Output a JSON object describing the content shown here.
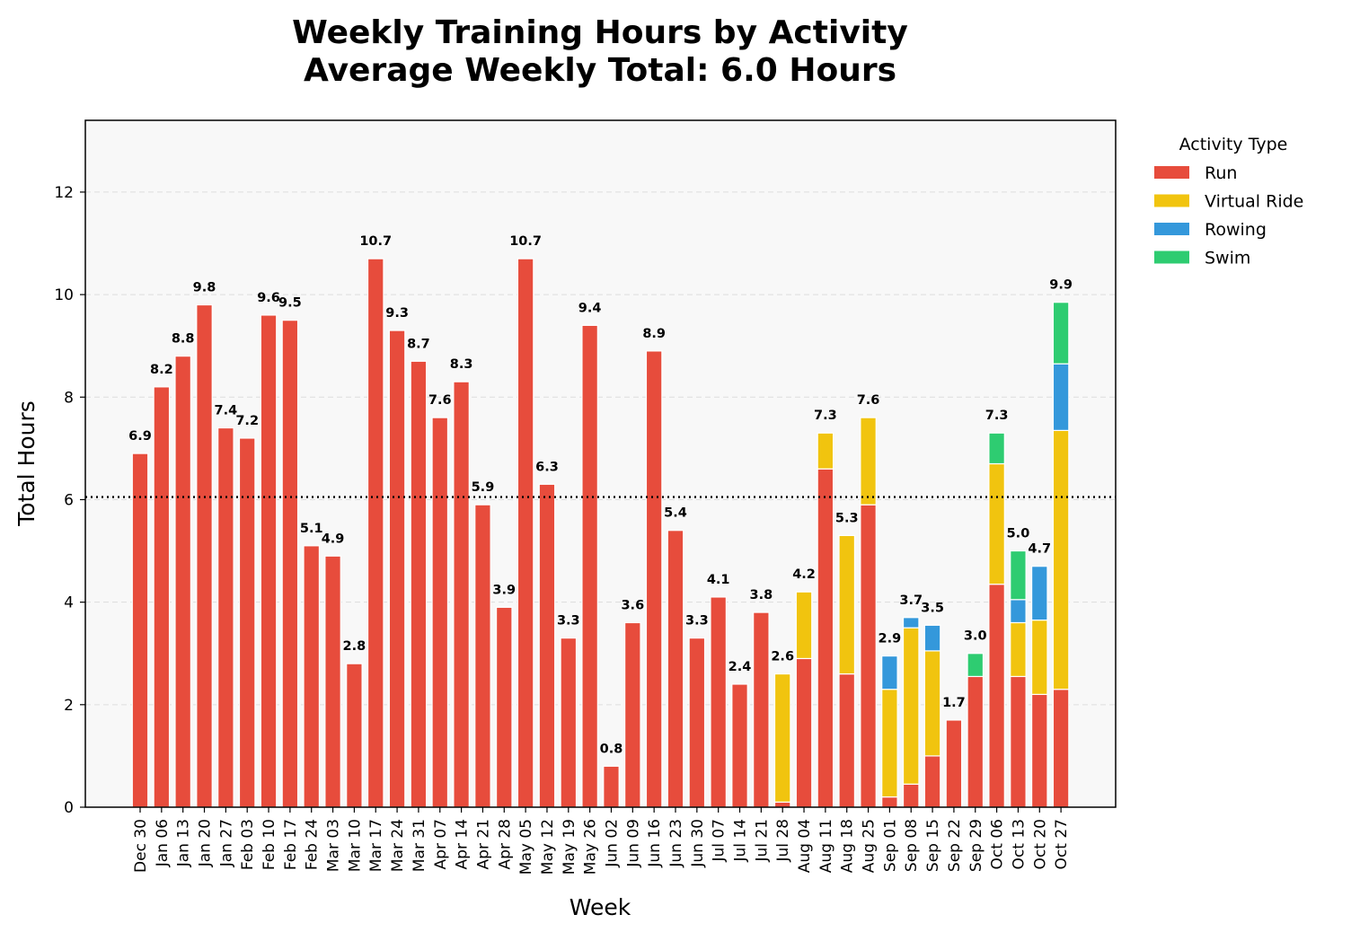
{
  "chart_data": {
    "type": "bar",
    "stacked": true,
    "title": "Weekly Training Hours by Activity",
    "subtitle": "Average Weekly Total: 6.0 Hours",
    "xlabel": "Week",
    "ylabel": "Total Hours",
    "ylim": [
      0,
      13.4
    ],
    "yticks": [
      0,
      2,
      4,
      6,
      8,
      10,
      12
    ],
    "grid": "horizontal dashed",
    "average_line": 6.05,
    "legend": {
      "title": "Activity Type",
      "placement": "outside-top-right"
    },
    "categories": [
      "Dec 30",
      "Jan 06",
      "Jan 13",
      "Jan 20",
      "Jan 27",
      "Feb 03",
      "Feb 10",
      "Feb 17",
      "Feb 24",
      "Mar 03",
      "Mar 10",
      "Mar 17",
      "Mar 24",
      "Mar 31",
      "Apr 07",
      "Apr 14",
      "Apr 21",
      "Apr 28",
      "May 05",
      "May 12",
      "May 19",
      "May 26",
      "Jun 02",
      "Jun 09",
      "Jun 16",
      "Jun 23",
      "Jun 30",
      "Jul 07",
      "Jul 14",
      "Jul 21",
      "Jul 28",
      "Aug 04",
      "Aug 11",
      "Aug 18",
      "Aug 25",
      "Sep 01",
      "Sep 08",
      "Sep 15",
      "Sep 22",
      "Sep 29",
      "Oct 06",
      "Oct 13",
      "Oct 20",
      "Oct 27"
    ],
    "series": [
      {
        "name": "Run",
        "color": "#e74c3c",
        "values": [
          6.9,
          8.2,
          8.8,
          9.8,
          7.4,
          7.2,
          9.6,
          9.5,
          5.1,
          4.9,
          2.8,
          10.7,
          9.3,
          8.7,
          7.6,
          8.3,
          5.9,
          3.9,
          10.7,
          6.3,
          3.3,
          9.4,
          0.8,
          3.6,
          8.9,
          5.4,
          3.3,
          4.1,
          2.4,
          3.8,
          0.1,
          2.9,
          6.6,
          2.6,
          5.9,
          0.2,
          0.45,
          1.0,
          1.7,
          2.55,
          4.35,
          2.55,
          2.2,
          2.3
        ]
      },
      {
        "name": "Virtual Ride",
        "color": "#f1c40f",
        "values": [
          0,
          0,
          0,
          0,
          0,
          0,
          0,
          0,
          0,
          0,
          0,
          0,
          0,
          0,
          0,
          0,
          0,
          0,
          0,
          0,
          0,
          0,
          0,
          0,
          0,
          0,
          0,
          0,
          0,
          0,
          2.5,
          1.3,
          0.7,
          2.7,
          1.7,
          2.1,
          3.05,
          2.05,
          0,
          0,
          2.35,
          1.05,
          1.45,
          5.05
        ]
      },
      {
        "name": "Rowing",
        "color": "#3498db",
        "values": [
          0,
          0,
          0,
          0,
          0,
          0,
          0,
          0,
          0,
          0,
          0,
          0,
          0,
          0,
          0,
          0,
          0,
          0,
          0,
          0,
          0,
          0,
          0,
          0,
          0,
          0,
          0,
          0,
          0,
          0,
          0,
          0,
          0,
          0,
          0,
          0.65,
          0.2,
          0.5,
          0,
          0,
          0,
          0.45,
          1.05,
          1.3
        ]
      },
      {
        "name": "Swim",
        "color": "#2ecc71",
        "values": [
          0,
          0,
          0,
          0,
          0,
          0,
          0,
          0,
          0,
          0,
          0,
          0,
          0,
          0,
          0,
          0,
          0,
          0,
          0,
          0,
          0,
          0,
          0,
          0,
          0,
          0,
          0,
          0,
          0,
          0,
          0,
          0,
          0,
          0,
          0,
          0,
          0,
          0,
          0,
          0.45,
          0.6,
          0.95,
          0,
          1.2
        ]
      }
    ],
    "totals": [
      "6.9",
      "8.2",
      "8.8",
      "9.8",
      "7.4",
      "7.2",
      "9.6",
      "9.5",
      "5.1",
      "4.9",
      "2.8",
      "10.7",
      "9.3",
      "8.7",
      "7.6",
      "8.3",
      "5.9",
      "3.9",
      "10.7",
      "6.3",
      "3.3",
      "9.4",
      "0.8",
      "3.6",
      "8.9",
      "5.4",
      "3.3",
      "4.1",
      "2.4",
      "3.8",
      "2.6",
      "4.2",
      "7.3",
      "5.3",
      "7.6",
      "2.9",
      "3.7",
      "3.5",
      "1.7",
      "3.0",
      "7.3",
      "5.0",
      "4.7",
      "9.9"
    ]
  }
}
